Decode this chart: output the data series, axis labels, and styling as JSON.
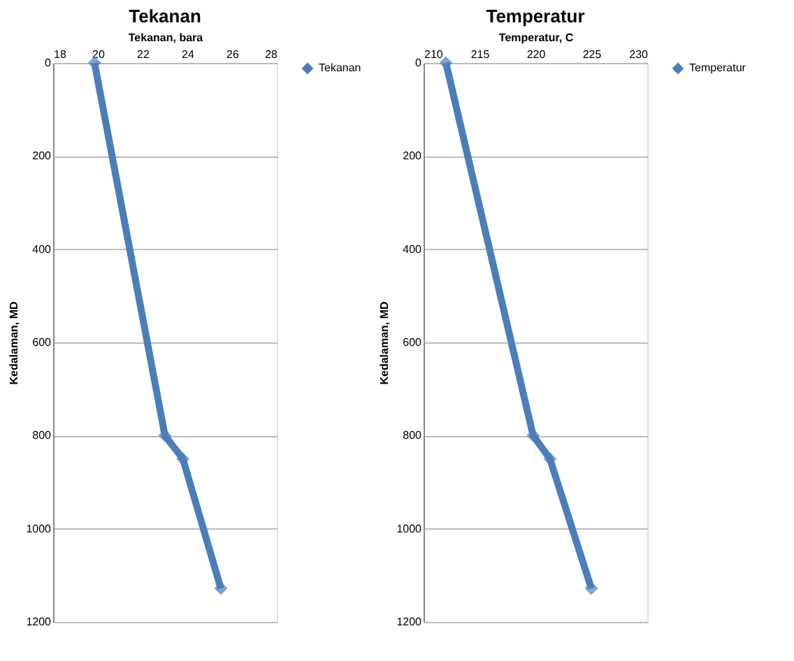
{
  "chart_data": [
    {
      "type": "line",
      "title": "Tekanan",
      "xlabel": "Tekanan, bara",
      "ylabel": "Kedalaman, MD",
      "xlim": [
        18,
        28
      ],
      "xticks": [
        18,
        20,
        22,
        24,
        26,
        28
      ],
      "ylim": [
        1200,
        0
      ],
      "yticks": [
        0,
        200,
        400,
        600,
        800,
        1000,
        1200
      ],
      "grid": "y",
      "legend": "right",
      "marker": "diamond",
      "line_style": "solid",
      "series": [
        {
          "name": "Tekanan",
          "color": "#4a7ebb",
          "x": [
            19.85,
            23.0,
            23.8,
            25.5
          ],
          "values": [
            0,
            800,
            850,
            1128
          ]
        }
      ]
    },
    {
      "type": "line",
      "title": "Temperatur",
      "xlabel": "Temperatur, C",
      "ylabel": "Kedalaman, MD",
      "xlim": [
        210,
        230
      ],
      "xticks": [
        210,
        215,
        220,
        225,
        230
      ],
      "ylim": [
        1200,
        0
      ],
      "yticks": [
        0,
        200,
        400,
        600,
        800,
        1000,
        1200
      ],
      "grid": "y",
      "legend": "right",
      "marker": "diamond",
      "line_style": "solid",
      "series": [
        {
          "name": "Temperatur",
          "color": "#4a7ebb",
          "x": [
            212.0,
            219.8,
            221.3,
            225.0
          ],
          "values": [
            0,
            800,
            850,
            1128
          ]
        }
      ]
    }
  ]
}
